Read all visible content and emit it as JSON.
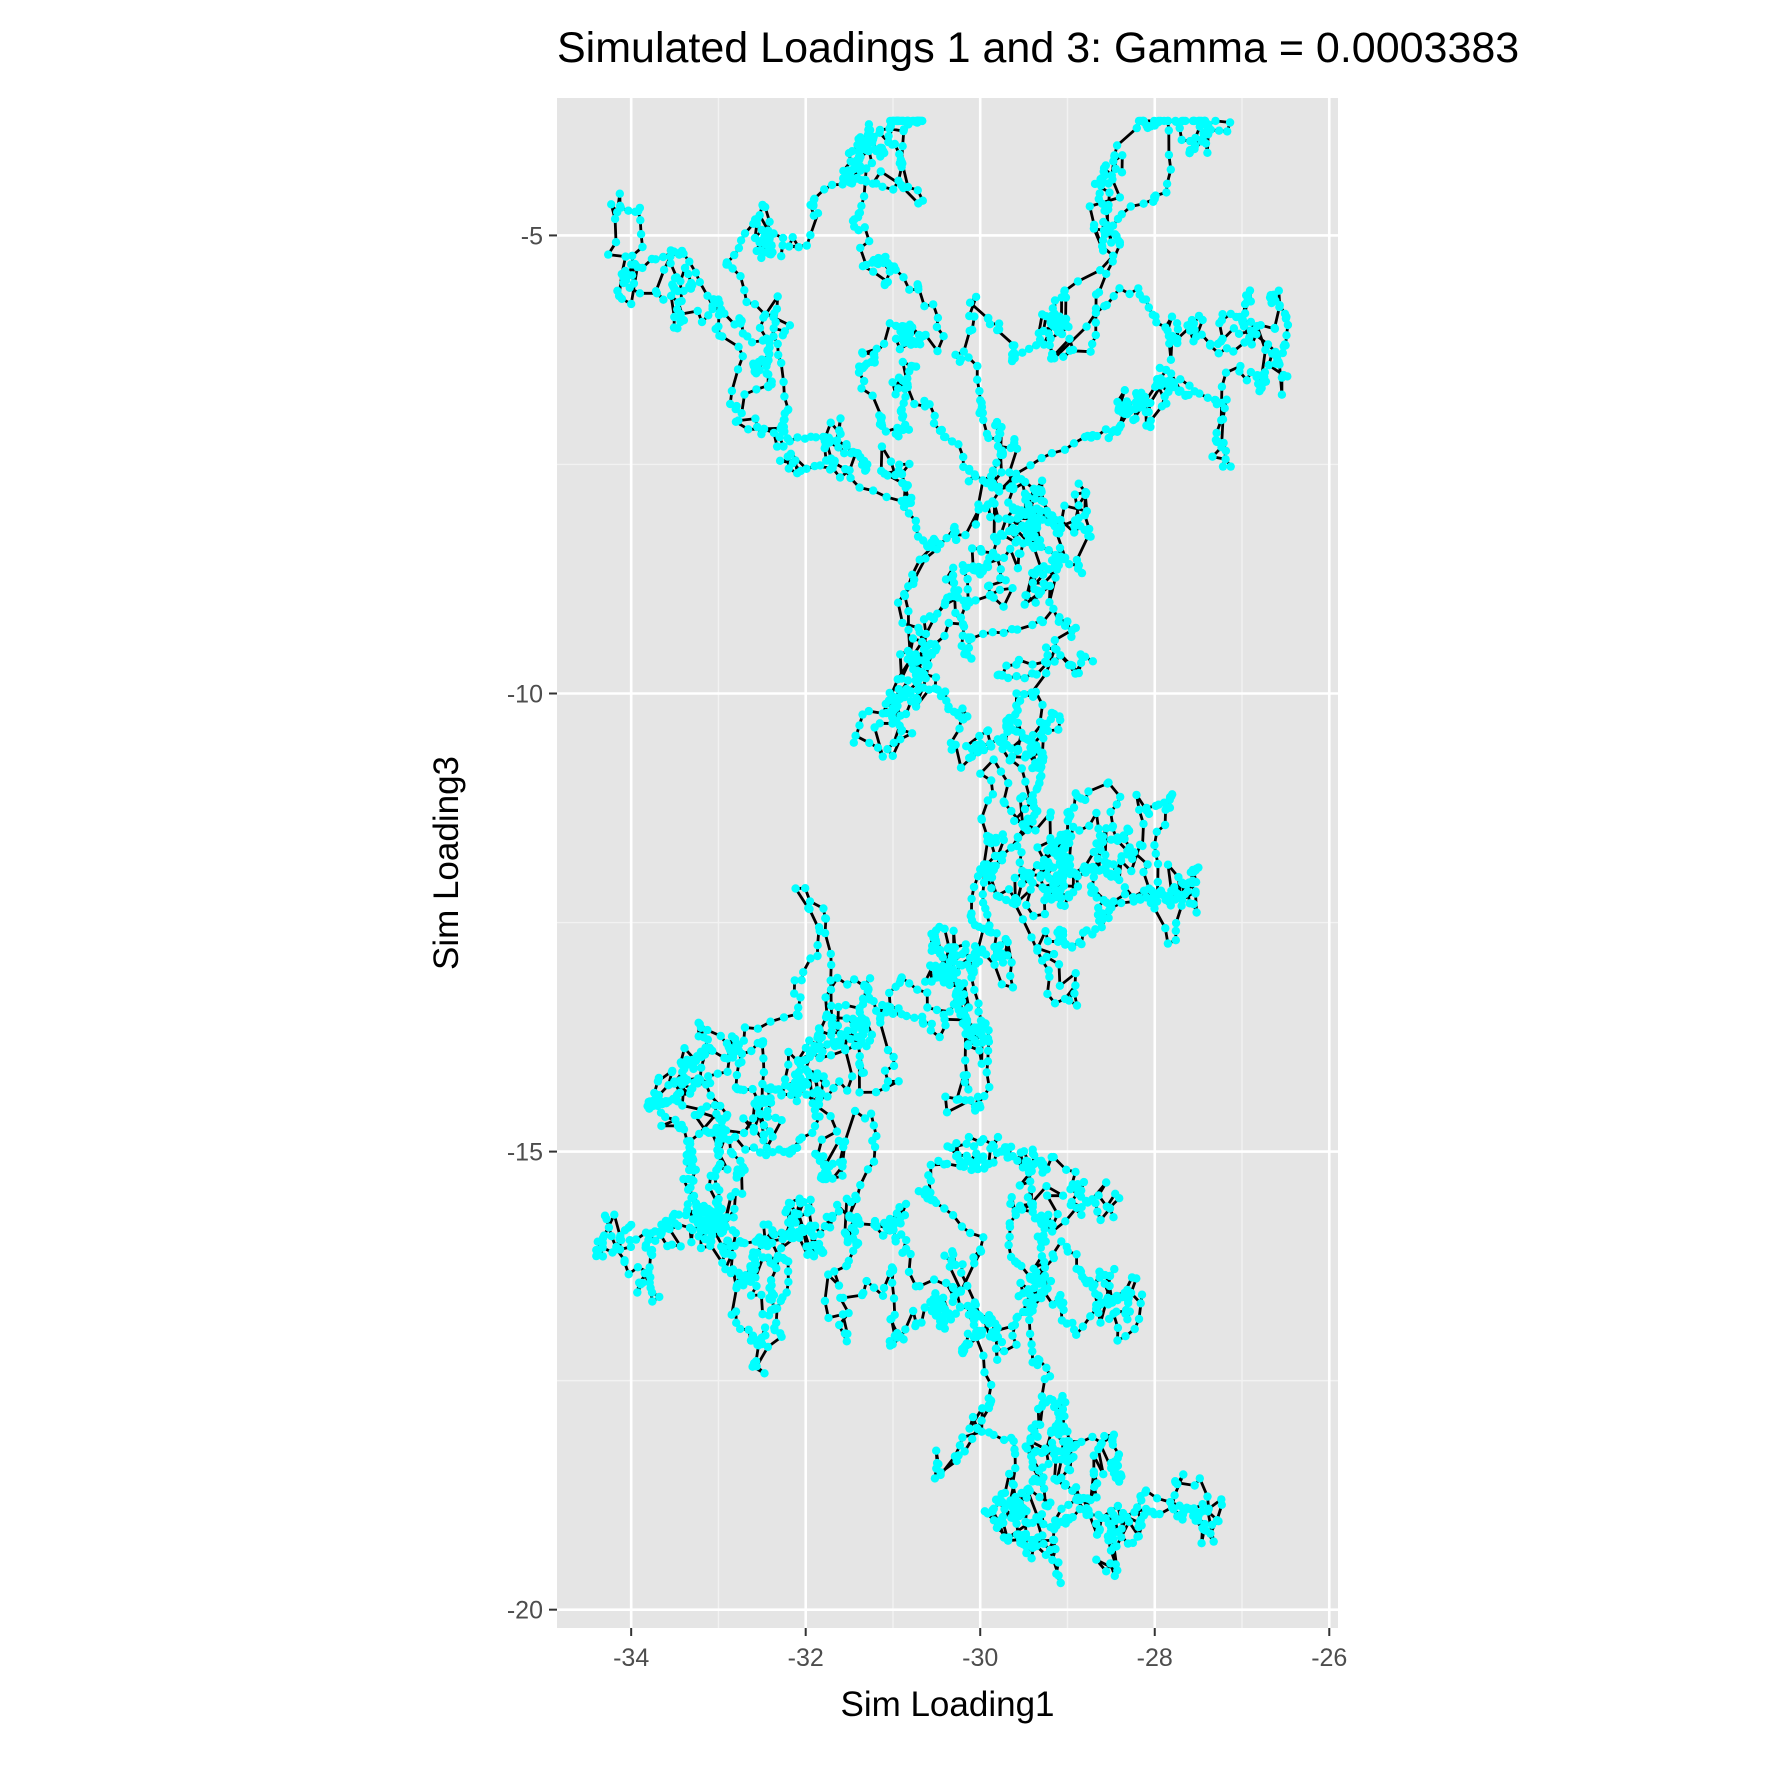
{
  "colors": {
    "panel_background": "#E5E5E5",
    "grid_major": "#FFFFFF",
    "grid_minor": "#F2F2F2",
    "path_line": "#000000",
    "points": "#00FFFF",
    "tick_text": "#4D4D4D",
    "tick_mark": "#333333"
  },
  "chart_data": {
    "type": "scatter",
    "title": "Simulated Loadings 1 and 3: Gamma = 0.0003383",
    "xlabel": "Sim Loading1",
    "ylabel": "Sim Loading3",
    "xlim": [
      -34.85,
      -25.9
    ],
    "ylim": [
      -20.2,
      -3.5
    ],
    "x_ticks": [
      -34,
      -32,
      -30,
      -28,
      -26
    ],
    "x_tick_labels": [
      "-34",
      "-32",
      "-30",
      "-28",
      "-26"
    ],
    "y_ticks": [
      -5,
      -10,
      -15,
      -20
    ],
    "y_tick_labels": [
      "-5",
      "-10",
      "-15",
      "-20"
    ],
    "grid": true,
    "legend": "none",
    "series": [
      {
        "style": "points connected by path",
        "anchors": [
          [
            -34.3,
            -15.7
          ],
          [
            -33.8,
            -15.9
          ],
          [
            -33.4,
            -15.3
          ],
          [
            -33.0,
            -15.6
          ],
          [
            -32.6,
            -16.1
          ],
          [
            -32.4,
            -16.6
          ],
          [
            -32.5,
            -17.1
          ],
          [
            -32.2,
            -16.2
          ],
          [
            -32.7,
            -15.2
          ],
          [
            -32.9,
            -14.6
          ],
          [
            -33.3,
            -15.0
          ],
          [
            -33.7,
            -14.5
          ],
          [
            -33.3,
            -14.0
          ],
          [
            -32.8,
            -14.3
          ],
          [
            -32.5,
            -13.8
          ],
          [
            -32.1,
            -13.5
          ],
          [
            -31.7,
            -13.6
          ],
          [
            -31.3,
            -13.2
          ],
          [
            -30.9,
            -13.5
          ],
          [
            -30.5,
            -13.1
          ],
          [
            -30.2,
            -13.6
          ],
          [
            -29.9,
            -13.8
          ],
          [
            -30.1,
            -13.1
          ],
          [
            -29.9,
            -12.6
          ],
          [
            -29.5,
            -12.0
          ],
          [
            -29.1,
            -11.6
          ],
          [
            -28.7,
            -11.9
          ],
          [
            -28.3,
            -11.5
          ],
          [
            -27.8,
            -11.1
          ],
          [
            -27.5,
            -11.9
          ],
          [
            -27.9,
            -12.2
          ],
          [
            -28.5,
            -12.0
          ],
          [
            -29.1,
            -12.2
          ],
          [
            -29.4,
            -11.4
          ],
          [
            -29.3,
            -10.8
          ],
          [
            -29.7,
            -10.3
          ],
          [
            -29.8,
            -9.8
          ],
          [
            -30.1,
            -9.4
          ],
          [
            -30.6,
            -9.7
          ],
          [
            -30.4,
            -9.0
          ],
          [
            -30.0,
            -8.7
          ],
          [
            -29.5,
            -8.2
          ],
          [
            -29.1,
            -8.6
          ],
          [
            -29.3,
            -7.8
          ],
          [
            -28.8,
            -7.2
          ],
          [
            -28.3,
            -6.9
          ],
          [
            -27.8,
            -6.6
          ],
          [
            -27.3,
            -6.8
          ],
          [
            -26.8,
            -6.7
          ],
          [
            -26.5,
            -6.2
          ],
          [
            -27.0,
            -5.9
          ],
          [
            -27.6,
            -6.0
          ],
          [
            -28.1,
            -5.7
          ],
          [
            -28.4,
            -5.1
          ],
          [
            -28.0,
            -4.6
          ],
          [
            -27.6,
            -4.1
          ],
          [
            -28.0,
            -3.8
          ],
          [
            -28.6,
            -4.4
          ],
          [
            -29.1,
            -6.0
          ],
          [
            -29.6,
            -6.3
          ],
          [
            -30.0,
            -6.8
          ],
          [
            -30.4,
            -7.2
          ],
          [
            -30.9,
            -6.9
          ],
          [
            -31.3,
            -6.4
          ],
          [
            -30.9,
            -6.0
          ],
          [
            -31.1,
            -5.3
          ],
          [
            -31.4,
            -4.8
          ],
          [
            -30.9,
            -4.2
          ],
          [
            -30.7,
            -3.7
          ],
          [
            -31.1,
            -4.1
          ],
          [
            -31.5,
            -4.3
          ],
          [
            -31.9,
            -4.6
          ],
          [
            -32.4,
            -5.2
          ],
          [
            -32.9,
            -5.3
          ],
          [
            -33.4,
            -5.2
          ],
          [
            -33.9,
            -4.7
          ],
          [
            -33.5,
            -5.6
          ],
          [
            -33.0,
            -5.7
          ],
          [
            -32.6,
            -6.4
          ],
          [
            -32.2,
            -6.9
          ],
          [
            -31.8,
            -7.2
          ],
          [
            -31.3,
            -7.5
          ],
          [
            -30.9,
            -7.9
          ],
          [
            -30.6,
            -8.4
          ],
          [
            -30.3,
            -8.2
          ],
          [
            -29.9,
            -7.7
          ],
          [
            -29.6,
            -8.0
          ],
          [
            -29.3,
            -8.4
          ],
          [
            -30.2,
            -8.6
          ],
          [
            -30.5,
            -9.5
          ],
          [
            -30.8,
            -10.0
          ],
          [
            -30.3,
            -10.2
          ],
          [
            -29.8,
            -10.5
          ],
          [
            -29.3,
            -10.9
          ],
          [
            -29.0,
            -11.3
          ],
          [
            -28.6,
            -12.4
          ],
          [
            -29.1,
            -12.6
          ],
          [
            -29.6,
            -12.3
          ],
          [
            -30.1,
            -12.4
          ],
          [
            -30.5,
            -12.8
          ],
          [
            -30.9,
            -13.1
          ],
          [
            -31.3,
            -13.6
          ],
          [
            -31.6,
            -13.8
          ],
          [
            -32.0,
            -14.0
          ],
          [
            -32.4,
            -14.3
          ],
          [
            -32.2,
            -15.0
          ],
          [
            -31.8,
            -15.3
          ],
          [
            -31.5,
            -15.7
          ],
          [
            -31.0,
            -15.8
          ],
          [
            -30.6,
            -15.5
          ],
          [
            -30.1,
            -15.2
          ],
          [
            -29.7,
            -15.0
          ],
          [
            -29.3,
            -15.1
          ],
          [
            -28.9,
            -15.4
          ],
          [
            -29.3,
            -15.7
          ],
          [
            -29.6,
            -16.2
          ],
          [
            -29.3,
            -16.6
          ],
          [
            -28.8,
            -16.4
          ],
          [
            -28.3,
            -16.6
          ],
          [
            -28.9,
            -17.0
          ],
          [
            -29.4,
            -17.3
          ],
          [
            -29.2,
            -17.7
          ],
          [
            -28.9,
            -18.2
          ],
          [
            -29.4,
            -18.6
          ],
          [
            -28.9,
            -18.8
          ],
          [
            -28.5,
            -18.4
          ],
          [
            -28.1,
            -18.9
          ],
          [
            -27.6,
            -18.9
          ],
          [
            -28.1,
            -18.7
          ],
          [
            -28.5,
            -19.1
          ],
          [
            -29.0,
            -19.0
          ],
          [
            -29.5,
            -18.9
          ],
          [
            -29.8,
            -18.8
          ],
          [
            -29.6,
            -18.3
          ],
          [
            -29.9,
            -17.8
          ],
          [
            -30.2,
            -17.2
          ],
          [
            -30.0,
            -16.8
          ],
          [
            -30.5,
            -16.6
          ],
          [
            -31.0,
            -16.3
          ],
          [
            -31.4,
            -16.0
          ],
          [
            -31.8,
            -16.1
          ],
          [
            -32.2,
            -15.9
          ],
          [
            -32.7,
            -16.0
          ],
          [
            -33.1,
            -15.7
          ],
          [
            -33.6,
            -15.8
          ],
          [
            -34.0,
            -15.8
          ]
        ]
      }
    ]
  }
}
